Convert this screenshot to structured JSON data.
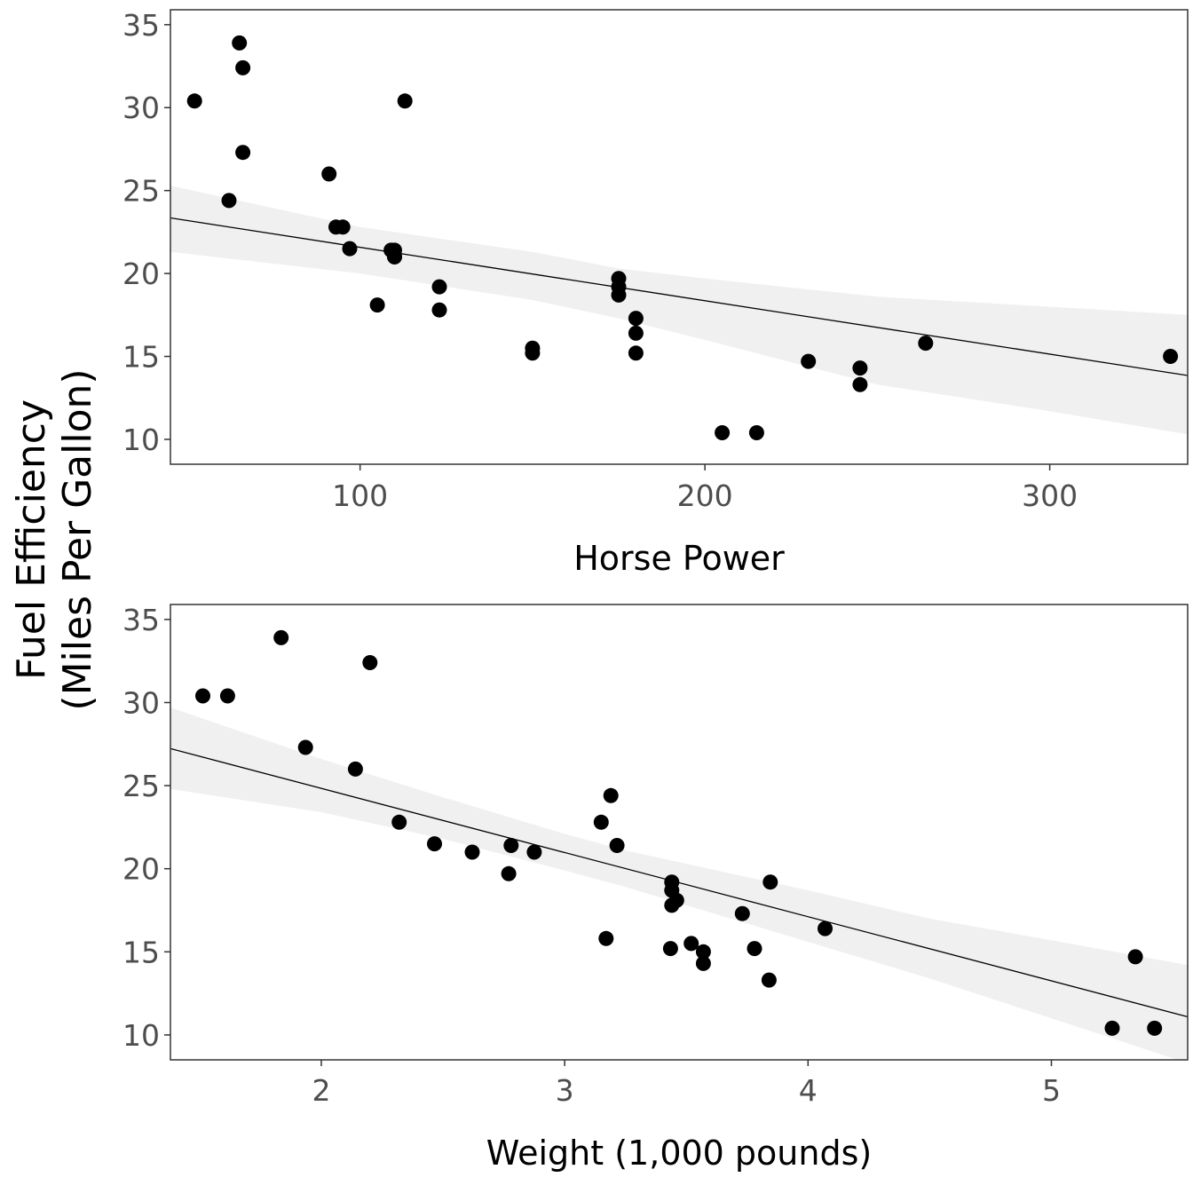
{
  "chart_data": [
    {
      "type": "scatter",
      "title": "",
      "xlabel": "Horse Power",
      "ylabel": "Fuel Efficiency (Miles Per Gallon)",
      "xlim": [
        45,
        340
      ],
      "ylim": [
        8.5,
        35.9
      ],
      "xticks": [
        100,
        200,
        300
      ],
      "yticks": [
        10,
        15,
        20,
        25,
        30,
        35
      ],
      "grid": false,
      "points": [
        {
          "x": 52,
          "y": 30.4
        },
        {
          "x": 62,
          "y": 24.4
        },
        {
          "x": 65,
          "y": 33.9
        },
        {
          "x": 66,
          "y": 32.4
        },
        {
          "x": 66,
          "y": 27.3
        },
        {
          "x": 91,
          "y": 26.0
        },
        {
          "x": 93,
          "y": 22.8
        },
        {
          "x": 95,
          "y": 22.8
        },
        {
          "x": 97,
          "y": 21.5
        },
        {
          "x": 105,
          "y": 18.1
        },
        {
          "x": 109,
          "y": 21.4
        },
        {
          "x": 110,
          "y": 21.0
        },
        {
          "x": 110,
          "y": 21.0
        },
        {
          "x": 110,
          "y": 21.4
        },
        {
          "x": 113,
          "y": 30.4
        },
        {
          "x": 123,
          "y": 19.2
        },
        {
          "x": 123,
          "y": 17.8
        },
        {
          "x": 150,
          "y": 15.5
        },
        {
          "x": 150,
          "y": 15.2
        },
        {
          "x": 175,
          "y": 19.7
        },
        {
          "x": 175,
          "y": 18.7
        },
        {
          "x": 175,
          "y": 19.2
        },
        {
          "x": 180,
          "y": 16.4
        },
        {
          "x": 180,
          "y": 17.3
        },
        {
          "x": 180,
          "y": 15.2
        },
        {
          "x": 205,
          "y": 10.4
        },
        {
          "x": 215,
          "y": 10.4
        },
        {
          "x": 230,
          "y": 14.7
        },
        {
          "x": 245,
          "y": 14.3
        },
        {
          "x": 245,
          "y": 13.3
        },
        {
          "x": 264,
          "y": 15.8
        },
        {
          "x": 335,
          "y": 15.0
        }
      ],
      "fit_line": {
        "x": [
          45,
          340
        ],
        "y": [
          23.35,
          13.85
        ]
      },
      "confidence_band": {
        "x": [
          45,
          100,
          150,
          175,
          200,
          250,
          300,
          340
        ],
        "lower": [
          21.3,
          20.0,
          18.4,
          17.3,
          16.0,
          13.3,
          11.7,
          10.3
        ],
        "upper": [
          25.3,
          22.8,
          21.3,
          20.3,
          19.7,
          18.6,
          18.0,
          17.5
        ]
      }
    },
    {
      "type": "scatter",
      "title": "",
      "xlabel": "Weight (1,000 pounds)",
      "ylabel": "Fuel Efficiency (Miles Per Gallon)",
      "xlim": [
        1.38,
        5.56
      ],
      "ylim": [
        8.5,
        35.9
      ],
      "xticks": [
        2,
        3,
        4,
        5
      ],
      "yticks": [
        10,
        15,
        20,
        25,
        30,
        35
      ],
      "grid": false,
      "points": [
        {
          "x": 1.513,
          "y": 30.4
        },
        {
          "x": 1.615,
          "y": 30.4
        },
        {
          "x": 1.835,
          "y": 33.9
        },
        {
          "x": 1.935,
          "y": 27.3
        },
        {
          "x": 2.14,
          "y": 26.0
        },
        {
          "x": 2.2,
          "y": 32.4
        },
        {
          "x": 2.32,
          "y": 22.8
        },
        {
          "x": 2.465,
          "y": 21.5
        },
        {
          "x": 2.62,
          "y": 21.0
        },
        {
          "x": 2.77,
          "y": 19.7
        },
        {
          "x": 2.78,
          "y": 21.4
        },
        {
          "x": 2.875,
          "y": 21.0
        },
        {
          "x": 3.15,
          "y": 22.8
        },
        {
          "x": 3.17,
          "y": 15.8
        },
        {
          "x": 3.19,
          "y": 24.4
        },
        {
          "x": 3.215,
          "y": 21.4
        },
        {
          "x": 3.435,
          "y": 15.2
        },
        {
          "x": 3.44,
          "y": 18.7
        },
        {
          "x": 3.44,
          "y": 19.2
        },
        {
          "x": 3.44,
          "y": 17.8
        },
        {
          "x": 3.46,
          "y": 18.1
        },
        {
          "x": 3.52,
          "y": 15.5
        },
        {
          "x": 3.57,
          "y": 14.3
        },
        {
          "x": 3.57,
          "y": 15.0
        },
        {
          "x": 3.73,
          "y": 17.3
        },
        {
          "x": 3.78,
          "y": 15.2
        },
        {
          "x": 3.84,
          "y": 13.3
        },
        {
          "x": 3.845,
          "y": 19.2
        },
        {
          "x": 4.07,
          "y": 16.4
        },
        {
          "x": 5.25,
          "y": 10.4
        },
        {
          "x": 5.345,
          "y": 14.7
        },
        {
          "x": 5.424,
          "y": 10.4
        }
      ],
      "fit_line": {
        "x": [
          1.38,
          5.56
        ],
        "y": [
          27.23,
          11.09
        ]
      },
      "confidence_band": {
        "x": [
          1.38,
          2.0,
          2.5,
          3.0,
          3.25,
          3.5,
          4.0,
          4.5,
          5.0,
          5.56
        ],
        "lower": [
          24.8,
          23.4,
          21.8,
          19.9,
          18.9,
          17.8,
          15.6,
          13.4,
          11.0,
          8.3
        ],
        "upper": [
          29.7,
          26.6,
          24.3,
          22.1,
          21.1,
          20.3,
          18.7,
          17.0,
          15.7,
          14.2
        ]
      }
    }
  ]
}
